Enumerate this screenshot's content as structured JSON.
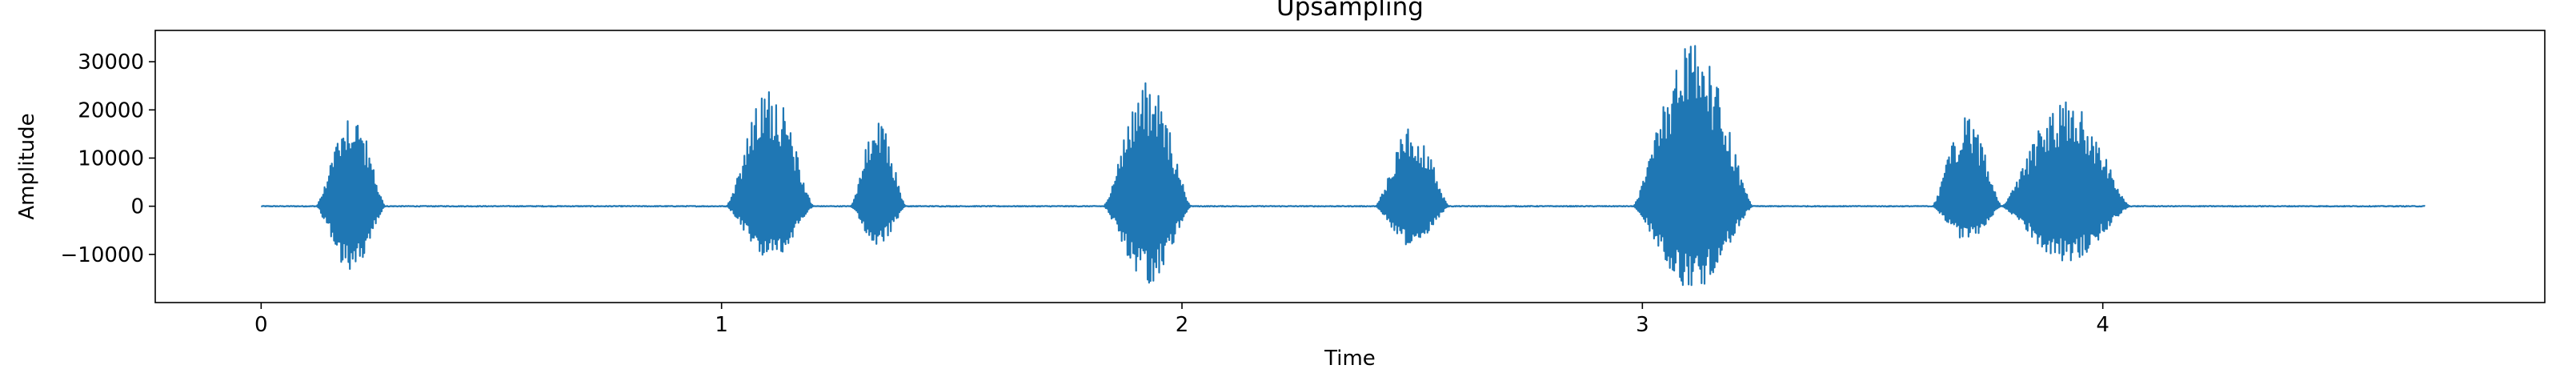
{
  "chart_data": {
    "type": "line",
    "title": "Upsampling",
    "xlabel": "Time",
    "ylabel": "Amplitude",
    "xlim": [
      -0.23,
      4.96
    ],
    "ylim": [
      -20000,
      36500
    ],
    "xticks": [
      0,
      1,
      2,
      3,
      4
    ],
    "xtick_labels": [
      "0",
      "1",
      "2",
      "3",
      "4"
    ],
    "yticks": [
      -10000,
      0,
      10000,
      20000,
      30000
    ],
    "ytick_labels": [
      "−10000",
      "0",
      "10000",
      "20000",
      "30000"
    ],
    "grid": false,
    "legend": "none",
    "series": [
      {
        "color": "#1f77b4",
        "duration": 4.7,
        "bursts": [
          {
            "start": 0.12,
            "end": 0.27,
            "pos_peak": 20000,
            "neg_peak": -13500
          },
          {
            "start": 1.01,
            "end": 1.2,
            "pos_peak": 24500,
            "neg_peak": -11000
          },
          {
            "start": 1.28,
            "end": 1.4,
            "pos_peak": 17500,
            "neg_peak": -8000
          },
          {
            "start": 1.83,
            "end": 2.02,
            "pos_peak": 26000,
            "neg_peak": -16000
          },
          {
            "start": 2.42,
            "end": 2.58,
            "pos_peak": 16500,
            "neg_peak": -8500
          },
          {
            "start": 2.98,
            "end": 3.24,
            "pos_peak": 34000,
            "neg_peak": -17500
          },
          {
            "start": 3.63,
            "end": 3.78,
            "pos_peak": 18500,
            "neg_peak": -7000
          },
          {
            "start": 3.78,
            "end": 4.06,
            "pos_peak": 22000,
            "neg_peak": -11500
          }
        ]
      }
    ]
  }
}
